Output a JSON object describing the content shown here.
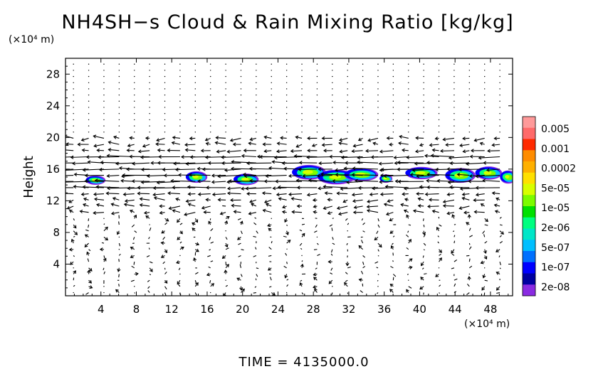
{
  "chart_data": {
    "type": "heatmap",
    "title": "NH4SH−s Cloud & Rain Mixing Ratio [kg/kg]",
    "xunit": "(×10⁴ m)",
    "yunit": "(×10⁴ m)",
    "ylabel": "Height",
    "xlim": [
      0,
      50.5
    ],
    "ylim": [
      0,
      30
    ],
    "xticks": [
      4,
      8,
      12,
      16,
      20,
      24,
      28,
      32,
      36,
      40,
      44,
      48
    ],
    "yticks": [
      4,
      8,
      12,
      16,
      20,
      24,
      28
    ],
    "legend": {
      "labels": [
        "0.005",
        "0.001",
        "0.0002",
        "5e-05",
        "1e-05",
        "2e-06",
        "5e-07",
        "1e-07",
        "2e-08"
      ],
      "colors": [
        "#ff9a9a",
        "#ff6a6a",
        "#ff2a00",
        "#ff8c00",
        "#ffb000",
        "#ffe000",
        "#d8ff00",
        "#7cfc00",
        "#00e000",
        "#00ff80",
        "#00e6c8",
        "#00bfff",
        "#0070ff",
        "#0000ff",
        "#0000a0",
        "#8a2be2"
      ]
    },
    "clouds": [
      {
        "x": 3.4,
        "y": 14.6,
        "w": 2.0,
        "h": 0.9
      },
      {
        "x": 14.8,
        "y": 15.0,
        "w": 2.2,
        "h": 1.2
      },
      {
        "x": 20.4,
        "y": 14.7,
        "w": 2.6,
        "h": 1.2
      },
      {
        "x": 27.5,
        "y": 15.6,
        "w": 3.6,
        "h": 1.6
      },
      {
        "x": 30.6,
        "y": 15.0,
        "w": 4.0,
        "h": 1.6
      },
      {
        "x": 33.4,
        "y": 15.3,
        "w": 3.6,
        "h": 1.4
      },
      {
        "x": 36.2,
        "y": 14.8,
        "w": 1.2,
        "h": 0.8
      },
      {
        "x": 40.2,
        "y": 15.5,
        "w": 3.4,
        "h": 1.3
      },
      {
        "x": 44.6,
        "y": 15.2,
        "w": 3.2,
        "h": 1.6
      },
      {
        "x": 47.8,
        "y": 15.5,
        "w": 2.8,
        "h": 1.4
      },
      {
        "x": 50.0,
        "y": 15.0,
        "w": 1.6,
        "h": 1.4
      }
    ]
  },
  "time_label": "TIME  =  4135000.0"
}
